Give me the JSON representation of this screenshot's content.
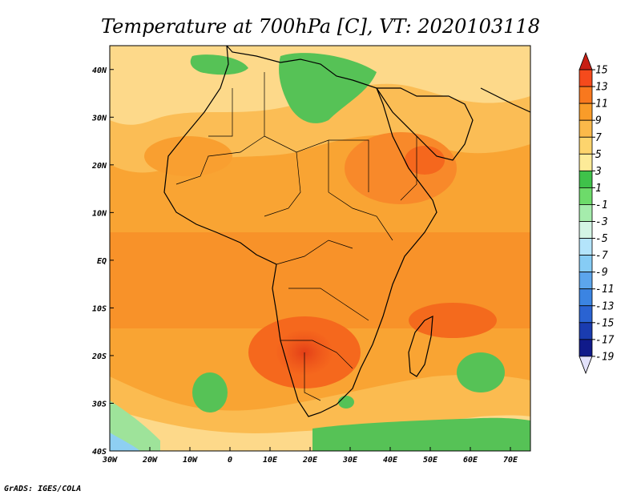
{
  "title": "Temperature at 700hPa [C], VT: 2020103118",
  "credit": "GrADS: IGES/COLA",
  "map": {
    "lon_range": [
      -30,
      75
    ],
    "lat_range": [
      -40,
      45
    ],
    "lon_ticks": [
      {
        "value": -30,
        "label": "30W"
      },
      {
        "value": -20,
        "label": "20W"
      },
      {
        "value": -10,
        "label": "10W"
      },
      {
        "value": 0,
        "label": "0"
      },
      {
        "value": 10,
        "label": "10E"
      },
      {
        "value": 20,
        "label": "20E"
      },
      {
        "value": 30,
        "label": "30E"
      },
      {
        "value": 40,
        "label": "40E"
      },
      {
        "value": 50,
        "label": "50E"
      },
      {
        "value": 60,
        "label": "60E"
      },
      {
        "value": 70,
        "label": "70E"
      }
    ],
    "lat_ticks": [
      {
        "value": 40,
        "label": "40N"
      },
      {
        "value": 30,
        "label": "30N"
      },
      {
        "value": 20,
        "label": "20N"
      },
      {
        "value": 10,
        "label": "10N"
      },
      {
        "value": 0,
        "label": "EQ"
      },
      {
        "value": -10,
        "label": "10S"
      },
      {
        "value": -20,
        "label": "20S"
      },
      {
        "value": -30,
        "label": "30S"
      },
      {
        "value": -40,
        "label": "40S"
      }
    ],
    "region": "Africa",
    "background_color": "#f9a433"
  },
  "colorbar": {
    "labels": [
      "15",
      "13",
      "11",
      "9",
      "7",
      "5",
      "3",
      "1",
      "-1",
      "-3",
      "-5",
      "-7",
      "-9",
      "-11",
      "-13",
      "-15",
      "-17",
      "-19"
    ],
    "colors": [
      "#c81f14",
      "#f54a1c",
      "#f8781e",
      "#f99c29",
      "#fbb94a",
      "#fdd46d",
      "#fdeb98",
      "#3fc24a",
      "#6ddb6a",
      "#a5ecac",
      "#d4f5e5",
      "#b4e4fb",
      "#86ccf5",
      "#5ca5ec",
      "#3b84e2",
      "#2a63d2",
      "#1a3cb0",
      "#101a8a",
      "#e3e2fb"
    ]
  }
}
